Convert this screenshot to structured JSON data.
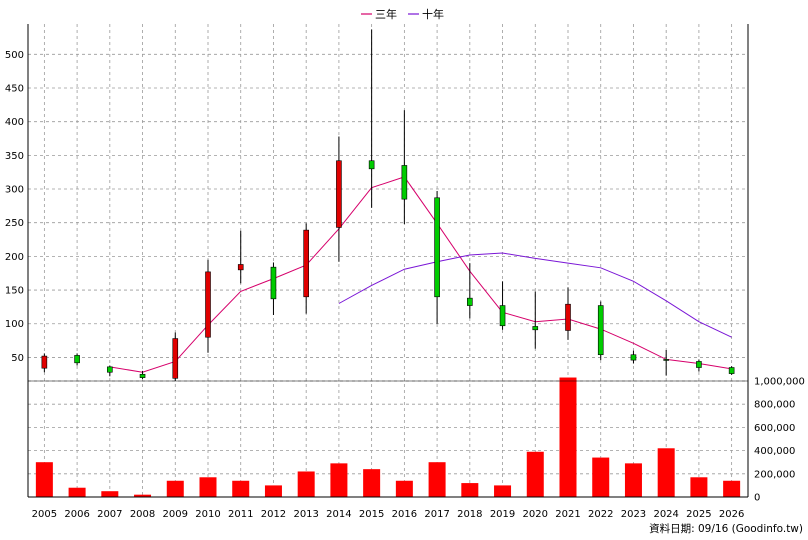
{
  "legend": [
    {
      "label": "三年",
      "color": "#d6006b"
    },
    {
      "label": "十年",
      "color": "#7a16d6"
    }
  ],
  "footer": "資料日期: 09/16  (Goodinfo.tw)",
  "colors": {
    "up": "#e00000",
    "down": "#00cc00",
    "ma3": "#d6006b",
    "ma10": "#7a16d6",
    "volume": "#ff0000",
    "grid": "#9a9a9a"
  },
  "chart_data": [
    {
      "type": "candlestick",
      "title": "",
      "grid": true,
      "legend_position": "top-center",
      "categories": [
        "2005",
        "2006",
        "2007",
        "2008",
        "2009",
        "2010",
        "2011",
        "2012",
        "2013",
        "2014",
        "2015",
        "2016",
        "2017",
        "2018",
        "2019",
        "2020",
        "2021",
        "2022",
        "2023",
        "2024",
        "2025",
        "2026"
      ],
      "ylim": [
        15,
        545
      ],
      "yticks": [
        "50",
        "100",
        "150",
        "200",
        "250",
        "300",
        "350",
        "400",
        "450",
        "500"
      ],
      "ohlc": [
        {
          "open": 34,
          "high": 56,
          "low": 28,
          "close": 52
        },
        {
          "open": 53,
          "high": 56,
          "low": 38,
          "close": 42
        },
        {
          "open": 36,
          "high": 38,
          "low": 22,
          "close": 28
        },
        {
          "open": 25,
          "high": 30,
          "low": 18,
          "close": 20
        },
        {
          "open": 19,
          "high": 87,
          "low": 15,
          "close": 78
        },
        {
          "open": 80,
          "high": 195,
          "low": 57,
          "close": 177
        },
        {
          "open": 180,
          "high": 238,
          "low": 160,
          "close": 188
        },
        {
          "open": 184,
          "high": 191,
          "low": 113,
          "close": 137
        },
        {
          "open": 140,
          "high": 249,
          "low": 115,
          "close": 239
        },
        {
          "open": 243,
          "high": 378,
          "low": 192,
          "close": 342
        },
        {
          "open": 342,
          "high": 537,
          "low": 272,
          "close": 330
        },
        {
          "open": 335,
          "high": 417,
          "low": 248,
          "close": 285
        },
        {
          "open": 287,
          "high": 297,
          "low": 100,
          "close": 140
        },
        {
          "open": 138,
          "high": 190,
          "low": 108,
          "close": 127
        },
        {
          "open": 127,
          "high": 163,
          "low": 91,
          "close": 97
        },
        {
          "open": 96,
          "high": 148,
          "low": 63,
          "close": 91
        },
        {
          "open": 90,
          "high": 154,
          "low": 76,
          "close": 129
        },
        {
          "open": 127,
          "high": 133,
          "low": 46,
          "close": 54
        },
        {
          "open": 54,
          "high": 60,
          "low": 41,
          "close": 46
        },
        {
          "open": 47,
          "high": 61,
          "low": 23,
          "close": 46
        },
        {
          "open": 44,
          "high": 47,
          "low": 29,
          "close": 35
        },
        {
          "open": 35,
          "high": 37,
          "low": 24,
          "close": 26
        }
      ],
      "series": [
        {
          "name": "三年",
          "values": [
            null,
            null,
            36,
            28,
            44,
            98,
            148,
            167,
            187,
            241,
            302,
            318,
            249,
            178,
            117,
            103,
            107,
            92,
            71,
            47,
            41,
            33
          ]
        },
        {
          "name": "十年",
          "values": [
            null,
            null,
            null,
            null,
            null,
            null,
            null,
            null,
            null,
            130,
            157,
            181,
            192,
            202,
            205,
            197,
            190,
            183,
            163,
            134,
            103,
            80
          ]
        }
      ]
    },
    {
      "type": "bar",
      "title": "",
      "grid": true,
      "categories": [
        "2005",
        "2006",
        "2007",
        "2008",
        "2009",
        "2010",
        "2011",
        "2012",
        "2013",
        "2014",
        "2015",
        "2016",
        "2017",
        "2018",
        "2019",
        "2020",
        "2021",
        "2022",
        "2023",
        "2024",
        "2025",
        "2026"
      ],
      "ylim": [
        0,
        1000000
      ],
      "yticks": [
        "0",
        "200,000",
        "400,000",
        "600,000",
        "800,000",
        "1,000,000"
      ],
      "series": [
        {
          "values": [
            300000,
            80000,
            50000,
            20000,
            140000,
            170000,
            140000,
            100000,
            220000,
            290000,
            240000,
            140000,
            300000,
            120000,
            100000,
            390000,
            1030000,
            340000,
            290000,
            420000,
            170000,
            140000
          ]
        }
      ]
    }
  ]
}
